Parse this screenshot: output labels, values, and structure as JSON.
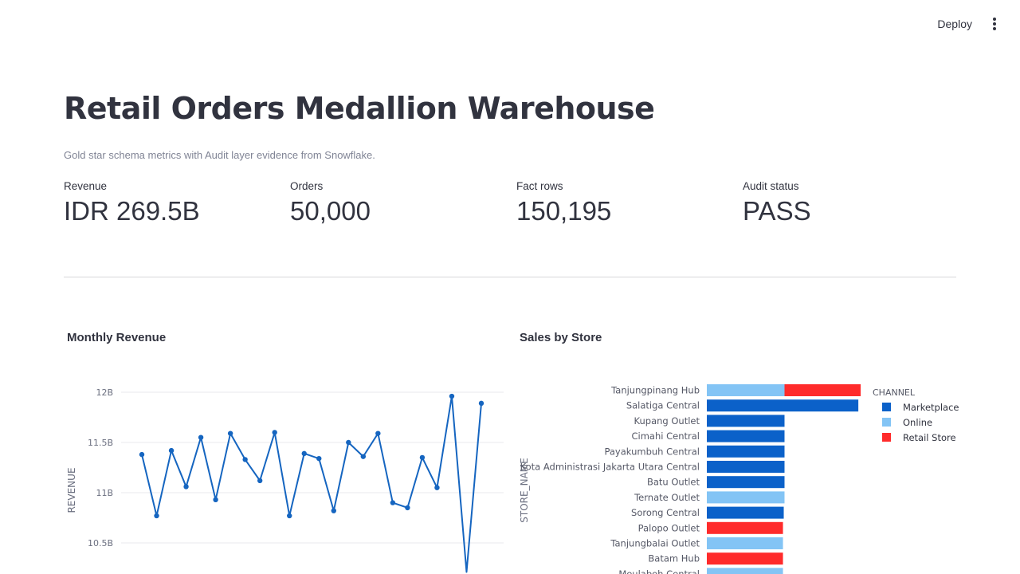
{
  "header": {
    "deploy_label": "Deploy"
  },
  "page": {
    "title": "Retail Orders Medallion Warehouse",
    "caption": "Gold star schema metrics with Audit layer evidence from Snowflake."
  },
  "metrics": [
    {
      "label": "Revenue",
      "value": "IDR 269.5B"
    },
    {
      "label": "Orders",
      "value": "50,000"
    },
    {
      "label": "Fact rows",
      "value": "150,195"
    },
    {
      "label": "Audit status",
      "value": "PASS"
    }
  ],
  "colors": {
    "line": "#1565c0",
    "marketplace": "#0b61c9",
    "online": "#83c4f5",
    "retail_store": "#ff2b2b"
  },
  "chart_data": [
    {
      "type": "line",
      "title": "Monthly Revenue",
      "ylabel": "REVENUE",
      "xlabel": "",
      "yticks": [
        "12B",
        "11.5B",
        "11B",
        "10.5B"
      ],
      "ytick_values": [
        12000000000,
        11500000000,
        11000000000,
        10500000000
      ],
      "ylim": [
        10200000000,
        12150000000
      ],
      "grid": true,
      "series": [
        {
          "values": [
            11380000000,
            10770000000,
            11420000000,
            11060000000,
            11550000000,
            10930000000,
            11590000000,
            11330000000,
            11120000000,
            11600000000,
            10770000000,
            11390000000,
            11340000000,
            10820000000,
            11500000000,
            11360000000,
            11590000000,
            10900000000,
            10850000000,
            11350000000,
            11050000000,
            11960000000,
            10210000000,
            11890000000
          ]
        }
      ]
    },
    {
      "type": "bar",
      "orientation": "horizontal",
      "stacked": true,
      "title": "Sales by Store",
      "ylabel": "STORE_NAME",
      "legend_title": "CHANNEL",
      "legend_position": "top-right",
      "legend": [
        {
          "name": "Marketplace",
          "color": "#0b61c9"
        },
        {
          "name": "Online",
          "color": "#83c4f5"
        },
        {
          "name": "Retail Store",
          "color": "#ff2b2b"
        }
      ],
      "categories": [
        "Tanjungpinang Hub",
        "Salatiga Central",
        "Kupang Outlet",
        "Cimahi Central",
        "Payakumbuh Central",
        "Kota Administrasi Jakarta Utara Central",
        "Batu Outlet",
        "Ternate Outlet",
        "Sorong Central",
        "Palopo Outlet",
        "Tanjungbalai Outlet",
        "Batam Hub",
        "Meulaboh Central"
      ],
      "series": [
        {
          "name": "Marketplace",
          "values": [
            0,
            1.95,
            1.0,
            1.0,
            1.0,
            1.0,
            1.0,
            0,
            0.99,
            0,
            0,
            0,
            0
          ]
        },
        {
          "name": "Online",
          "values": [
            1.0,
            0,
            0,
            0,
            0,
            0,
            0,
            1.0,
            0,
            0,
            0.98,
            0,
            0.98
          ]
        },
        {
          "name": "Retail Store",
          "values": [
            0.98,
            0,
            0,
            0,
            0,
            0,
            0,
            0,
            0,
            0.98,
            0,
            0.98,
            0
          ]
        }
      ]
    }
  ]
}
